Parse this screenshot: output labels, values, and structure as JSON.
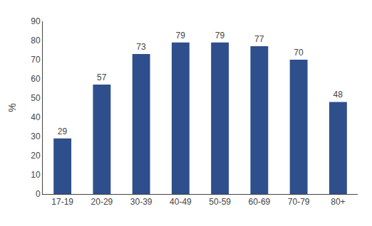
{
  "chart_data": {
    "type": "bar",
    "categories": [
      "17-19",
      "20-29",
      "30-39",
      "40-49",
      "50-59",
      "60-69",
      "70-79",
      "80+"
    ],
    "values": [
      29,
      57,
      73,
      79,
      79,
      77,
      70,
      48
    ],
    "color": "#2E4F8C",
    "ylabel": "%",
    "ylim": [
      0,
      90
    ],
    "yticks": [
      0,
      10,
      20,
      30,
      40,
      50,
      60,
      70,
      80,
      90
    ],
    "data_labels": true,
    "grid": false
  }
}
